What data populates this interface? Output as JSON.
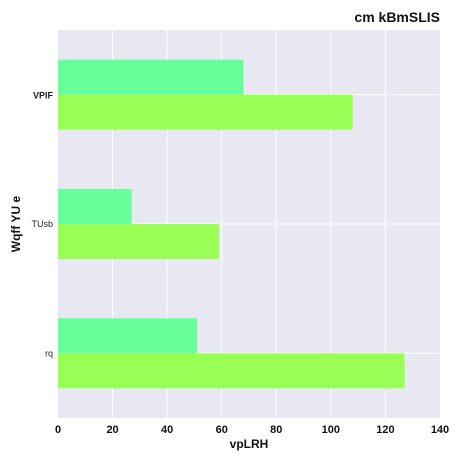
{
  "chart_data": {
    "type": "bar",
    "orientation": "horizontal",
    "title": "cm kBmSLIS",
    "xlabel": "vpLRH",
    "ylabel": "Wqff  YU   e",
    "categories": [
      "VPIF",
      "TUsb",
      "rq"
    ],
    "category_label_styles": [
      "bold",
      "normal",
      "normal"
    ],
    "series": [
      {
        "values": [
          68,
          27,
          51
        ],
        "color": "#66ff99"
      },
      {
        "values": [
          108,
          59,
          127
        ],
        "color": "#99ff55"
      }
    ],
    "xlim": [
      0,
      140
    ],
    "xticks": [
      0,
      20,
      40,
      60,
      80,
      100,
      120,
      140
    ],
    "grid": true,
    "background": "#e8e8f2",
    "legend": "none"
  }
}
